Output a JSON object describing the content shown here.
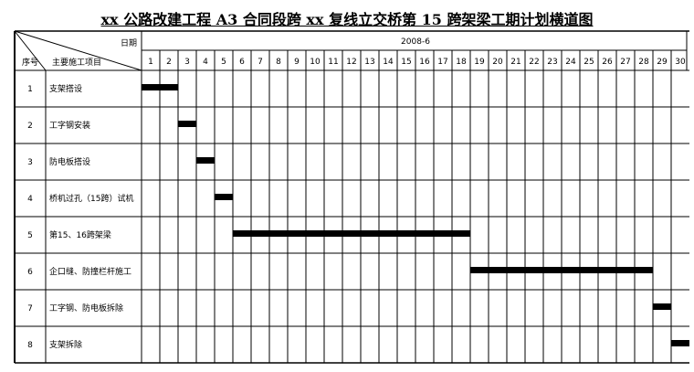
{
  "document": {
    "title": "xx 公路改建工程 A3 合同段跨 xx 复线立交桥第 15 跨架梁工期计划横道图"
  },
  "header": {
    "date_label": "日期",
    "no_label": "序号",
    "item_label": "主要施工项目",
    "month": "2008-6"
  },
  "chart_data": {
    "type": "bar",
    "subtype": "gantt",
    "x_unit": "day",
    "days": [
      1,
      2,
      3,
      4,
      5,
      6,
      7,
      8,
      9,
      10,
      11,
      12,
      13,
      14,
      15,
      16,
      17,
      18,
      19,
      20,
      21,
      22,
      23,
      24,
      25,
      26,
      27,
      28,
      29,
      30
    ],
    "tasks": [
      {
        "no": "1",
        "name": "支架搭设",
        "start": 1,
        "end": 2
      },
      {
        "no": "2",
        "name": "工字钢安装",
        "start": 3,
        "end": 3
      },
      {
        "no": "3",
        "name": "防电板搭设",
        "start": 4,
        "end": 4
      },
      {
        "no": "4",
        "name": "桥机过孔（15跨）试机",
        "start": 5,
        "end": 5
      },
      {
        "no": "5",
        "name": "第15、16跨架梁",
        "start": 6,
        "end": 18
      },
      {
        "no": "6",
        "name": "企口缝、防撞栏杆施工",
        "start": 19,
        "end": 28
      },
      {
        "no": "7",
        "name": "工字钢、防电板拆除",
        "start": 29,
        "end": 29
      },
      {
        "no": "8",
        "name": "支架拆除",
        "start": 30,
        "end": 30
      }
    ],
    "bar_color": "#000000",
    "grid": true
  }
}
